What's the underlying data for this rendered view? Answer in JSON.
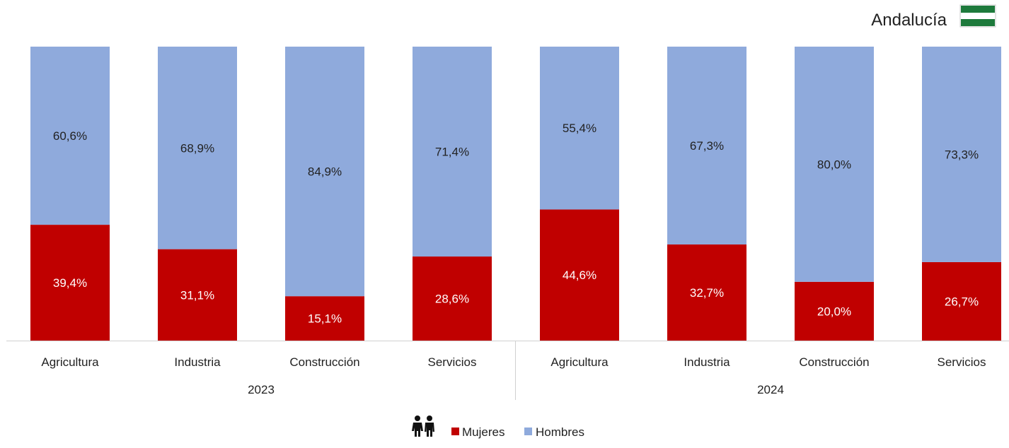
{
  "region": {
    "name": "Andalucía",
    "flag_icon": "andalusia-flag-icon",
    "flag_colors": [
      "#1e7a3c",
      "#ffffff",
      "#1e7a3c"
    ]
  },
  "legend": {
    "icon": "people-couple-icon",
    "items": [
      {
        "label": "Mujeres",
        "color": "#c00000"
      },
      {
        "label": "Hombres",
        "color": "#8faadc"
      }
    ]
  },
  "chart_data": {
    "type": "bar",
    "stacked": true,
    "percent_stacked": true,
    "ylim": [
      0,
      100
    ],
    "grid": false,
    "legend_position": "bottom",
    "groups": [
      {
        "label": "2023",
        "categories": [
          "Agricultura",
          "Industria",
          "Construcción",
          "Servicios"
        ]
      },
      {
        "label": "2024",
        "categories": [
          "Agricultura",
          "Industria",
          "Construcción",
          "Servicios"
        ]
      }
    ],
    "series": [
      {
        "name": "Mujeres",
        "color": "#c00000",
        "values": [
          39.4,
          31.1,
          15.1,
          28.6,
          44.6,
          32.7,
          20.0,
          26.7
        ],
        "labels": [
          "39,4%",
          "31,1%",
          "15,1%",
          "28,6%",
          "44,6%",
          "32,7%",
          "20,0%",
          "26,7%"
        ]
      },
      {
        "name": "Hombres",
        "color": "#8faadc",
        "values": [
          60.6,
          68.9,
          84.9,
          71.4,
          55.4,
          67.3,
          80.0,
          73.3
        ],
        "labels": [
          "60,6%",
          "68,9%",
          "84,9%",
          "71,4%",
          "55,4%",
          "67,3%",
          "80,0%",
          "73,3%"
        ]
      }
    ]
  }
}
